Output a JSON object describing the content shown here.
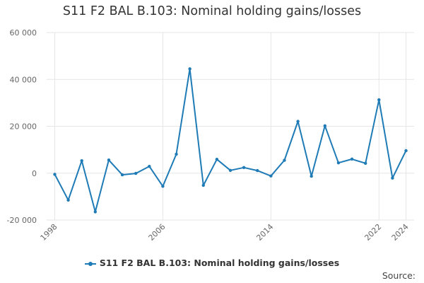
{
  "chart_data": {
    "type": "line",
    "title": "S11 F2 BAL B.103: Nominal holding gains/losses",
    "xlabel": "",
    "ylabel": "",
    "x": [
      1998,
      1999,
      2000,
      2001,
      2002,
      2003,
      2004,
      2005,
      2006,
      2007,
      2008,
      2009,
      2010,
      2011,
      2012,
      2013,
      2014,
      2015,
      2016,
      2017,
      2018,
      2019,
      2020,
      2021,
      2022,
      2023,
      2024
    ],
    "series": [
      {
        "name": "S11 F2 BAL B.103: Nominal holding gains/losses",
        "color": "#1f7bb6",
        "values": [
          -500,
          -11500,
          5300,
          -16500,
          5600,
          -700,
          -100,
          2900,
          -5600,
          8100,
          44500,
          -5200,
          5900,
          1200,
          2400,
          1100,
          -1200,
          5500,
          22100,
          -1300,
          20200,
          4400,
          6000,
          4200,
          31300,
          -2100,
          9600
        ]
      }
    ],
    "ylim": [
      -20000,
      60000
    ],
    "y_ticks": [
      -20000,
      0,
      20000,
      40000,
      60000
    ],
    "y_tick_labels": [
      "-20 000",
      "0",
      "20 000",
      "40 000",
      "60 000"
    ],
    "x_ticks": [
      1998,
      2006,
      2014,
      2022,
      2024
    ],
    "x_tick_labels": [
      "1998",
      "2006",
      "2014",
      "2022",
      "2024"
    ],
    "grid": true,
    "legend_position": "bottom"
  },
  "source_label": "Source:"
}
